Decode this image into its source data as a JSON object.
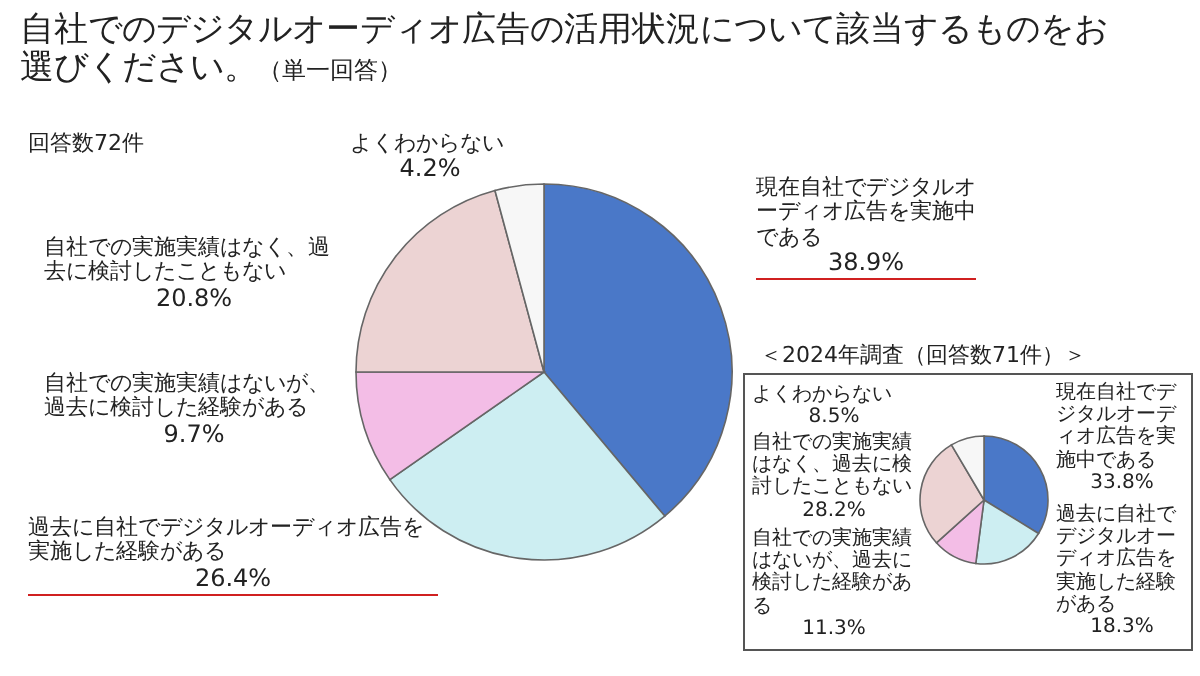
{
  "chart_data": [
    {
      "type": "pie",
      "title": "自社でのデジタルオーディオ広告の活用状況について該当するものをお選びください。",
      "subtitle": "（単一回答）",
      "annotations": [
        "回答数72件"
      ],
      "categories": [
        "現在自社でデジタルオーディオ広告を実施中である",
        "過去に自社でデジタルオーディオ広告を実施した経験がある",
        "自社での実施実績はないが、過去に検討した経験がある",
        "自社での実施実績はなく、過去に検討したこともない",
        "よくわからない"
      ],
      "values": [
        38.9,
        26.4,
        9.7,
        20.8,
        4.2
      ],
      "value_labels": [
        "38.9%",
        "26.4%",
        "9.7%",
        "20.8%",
        "4.2%"
      ],
      "colors": [
        "#4a78c8",
        "#cdeef2",
        "#f3bde6",
        "#ecd3d3",
        "#f7f7f7"
      ]
    },
    {
      "type": "pie",
      "title": "＜2024年調査（回答数71件）＞",
      "categories": [
        "現在自社でデジタルオーディオ広告を実施中である",
        "過去に自社でデジタルオーディオ広告を実施した経験がある",
        "自社での実施実績はないが、過去に検討した経験がある",
        "自社での実施実績はなく、過去に検討したこともない",
        "よくわからない"
      ],
      "values": [
        33.8,
        18.3,
        11.3,
        28.2,
        8.5
      ],
      "value_labels": [
        "33.8%",
        "18.3%",
        "11.3%",
        "28.2%",
        "8.5%"
      ],
      "colors": [
        "#4a78c8",
        "#cdeef2",
        "#f3bde6",
        "#ecd3d3",
        "#f7f7f7"
      ]
    }
  ]
}
